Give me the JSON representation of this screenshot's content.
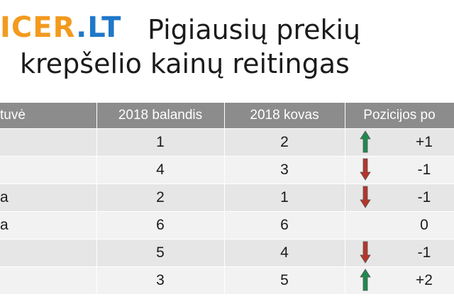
{
  "logo": {
    "part1": "ICER",
    "part2": ".LT"
  },
  "title": {
    "line1": "Pigiausių prekių",
    "line2": "krepšelio kainų reitingas"
  },
  "table": {
    "headers": [
      "tuvė",
      "2018 balandis",
      "2018 kovas",
      "Pozicijos  po"
    ],
    "rows": [
      {
        "store": "",
        "april": "1",
        "march": "2",
        "arrow": "up",
        "change": "+1"
      },
      {
        "store": "",
        "april": "4",
        "march": "3",
        "arrow": "down",
        "change": "-1"
      },
      {
        "store": "a",
        "april": "2",
        "march": "1",
        "arrow": "down",
        "change": "-1"
      },
      {
        "store": "a",
        "april": "6",
        "march": "6",
        "arrow": "none",
        "change": "0"
      },
      {
        "store": "",
        "april": "5",
        "march": "4",
        "arrow": "down",
        "change": "-1"
      },
      {
        "store": "",
        "april": "3",
        "march": "5",
        "arrow": "up",
        "change": "+2"
      }
    ]
  },
  "colors": {
    "up": "#1e8a4c",
    "down": "#b6352b",
    "header": "#8c8c8c",
    "logo_orange": "#f39a1e",
    "logo_blue": "#1f78c8"
  }
}
